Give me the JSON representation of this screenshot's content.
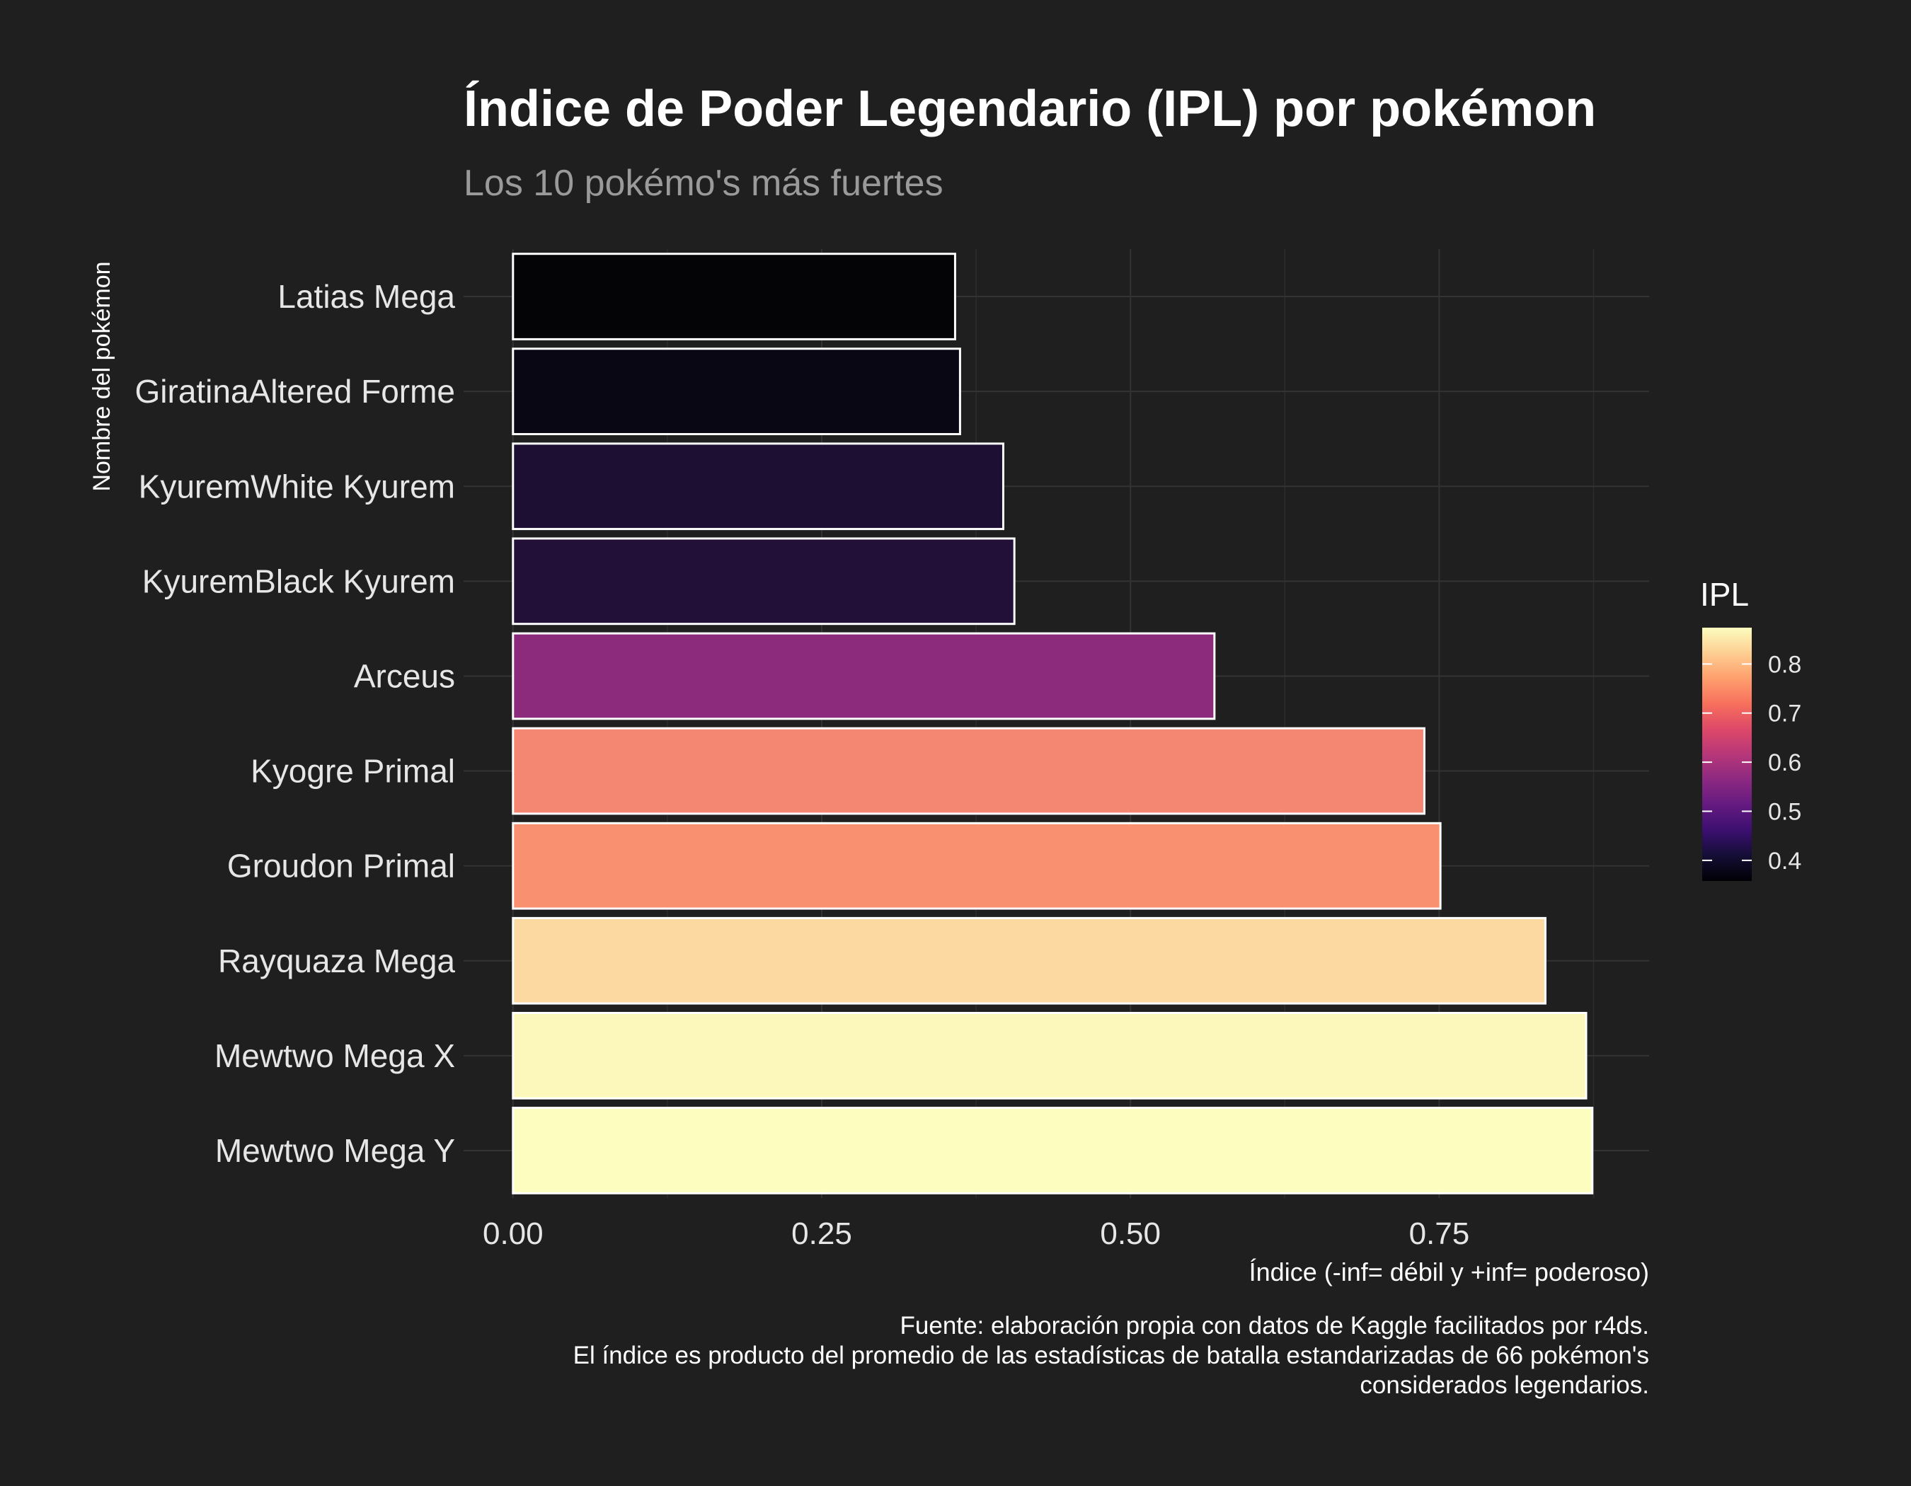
{
  "chart_data": {
    "type": "bar",
    "orientation": "horizontal",
    "title": "Índice de Poder Legendario (IPL) por pokémon",
    "subtitle": "Los 10 pokémo's más fuertes",
    "xlabel": "Índice (-inf= débil y +inf= poderoso)",
    "ylabel": "Nombre del pokémon",
    "caption": [
      "Fuente: elaboración propia con datos de Kaggle facilitados por r4ds.",
      "El índice es producto del promedio de las estadísticas de batalla estandarizadas de 66 pokémon's",
      "considerados legendarios."
    ],
    "categories": [
      "Latias Mega",
      "GiratinaAltered Forme",
      "KyuremWhite Kyurem",
      "KyuremBlack Kyurem",
      "Arceus",
      "Kyogre Primal",
      "Groudon Primal",
      "Rayquaza Mega",
      "Mewtwo Mega X",
      "Mewtwo Mega Y"
    ],
    "values": [
      0.358,
      0.362,
      0.397,
      0.406,
      0.568,
      0.738,
      0.751,
      0.836,
      0.869,
      0.874
    ],
    "xlim": [
      -0.04,
      0.92
    ],
    "xticks": [
      0.0,
      0.25,
      0.5,
      0.75
    ],
    "xtick_labels": [
      "0.00",
      "0.25",
      "0.50",
      "0.75"
    ],
    "grid": true,
    "legend": {
      "title": "IPL",
      "position": "right",
      "colormap": "magma",
      "range": [
        0.358,
        0.874
      ],
      "ticks": [
        0.4,
        0.5,
        0.6,
        0.7,
        0.8
      ],
      "tick_labels": [
        "0.4",
        "0.5",
        "0.6",
        "0.7",
        "0.8"
      ]
    },
    "bar_colors": [
      "#040305",
      "#0a0714",
      "#1d0e33",
      "#221038",
      "#8c2a7c",
      "#f38772",
      "#f9906f",
      "#fdd9a2",
      "#fcf8bb",
      "#fcfdbf"
    ],
    "background": "#1f1f1f",
    "bar_outline": "#ffffff"
  }
}
